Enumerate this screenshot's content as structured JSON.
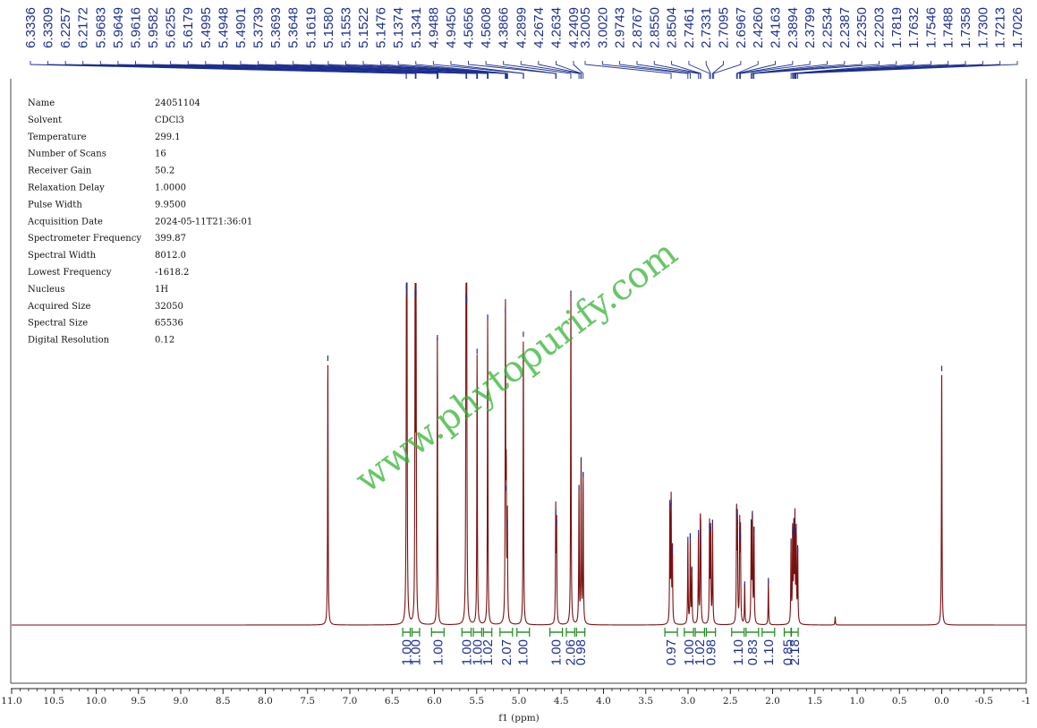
{
  "chart_data": {
    "type": "line",
    "xlabel": "f1 (ppm)",
    "xlim": [
      11.0,
      -1.0
    ],
    "ylim": [
      0,
      1.0
    ],
    "x_reversed": true,
    "x_ticks": [
      "11.0",
      "10.5",
      "10.0",
      "9.5",
      "9.0",
      "8.5",
      "8.0",
      "7.5",
      "7.0",
      "6.5",
      "6.0",
      "5.5",
      "5.0",
      "4.5",
      "4.0",
      "3.5",
      "3.0",
      "2.5",
      "2.0",
      "1.5",
      "1.0",
      "0.5",
      "0.0",
      "-0.5",
      "-1"
    ],
    "tick_values": [
      11.0,
      10.5,
      10.0,
      9.5,
      9.0,
      8.5,
      8.0,
      7.5,
      7.0,
      6.5,
      6.0,
      5.5,
      5.0,
      4.5,
      4.0,
      3.5,
      3.0,
      2.5,
      2.0,
      1.5,
      1.0,
      0.5,
      0.0,
      -0.5,
      -1.0
    ],
    "peak_labels": [
      "6.3336",
      "6.3309",
      "6.2257",
      "6.2172",
      "5.9683",
      "5.9649",
      "5.9616",
      "5.9582",
      "5.6255",
      "5.6179",
      "5.4995",
      "5.4948",
      "5.4901",
      "5.3739",
      "5.3693",
      "5.3648",
      "5.1619",
      "5.1580",
      "5.1553",
      "5.1522",
      "5.1476",
      "5.1374",
      "5.1341",
      "4.9488",
      "4.9450",
      "4.5656",
      "4.5608",
      "4.3866",
      "4.2899",
      "4.2674",
      "4.2634",
      "4.2409",
      "3.2005",
      "3.0020",
      "2.9743",
      "2.8767",
      "2.8550",
      "2.8504",
      "2.7461",
      "2.7331",
      "2.7095",
      "2.6967",
      "2.4260",
      "2.4163",
      "2.3894",
      "2.3799",
      "2.2534",
      "2.2387",
      "2.2350",
      "2.2203",
      "1.7819",
      "1.7632",
      "1.7546",
      "1.7488",
      "1.7358",
      "1.7300",
      "1.7213",
      "1.7026"
    ],
    "series": [
      {
        "peaks": [
          {
            "x": 7.26,
            "h": 0.78
          },
          {
            "x": 6.33,
            "h": 0.99
          },
          {
            "x": 6.325,
            "h": 0.97
          },
          {
            "x": 6.228,
            "h": 0.97
          },
          {
            "x": 6.217,
            "h": 0.97
          },
          {
            "x": 5.965,
            "h": 0.84
          },
          {
            "x": 5.626,
            "h": 0.96
          },
          {
            "x": 5.618,
            "h": 0.95
          },
          {
            "x": 5.495,
            "h": 0.8
          },
          {
            "x": 5.37,
            "h": 0.9
          },
          {
            "x": 5.16,
            "h": 0.92
          },
          {
            "x": 5.15,
            "h": 0.4
          },
          {
            "x": 5.137,
            "h": 0.3
          },
          {
            "x": 4.948,
            "h": 0.85
          },
          {
            "x": 4.565,
            "h": 0.33
          },
          {
            "x": 4.555,
            "h": 0.3
          },
          {
            "x": 4.386,
            "h": 0.97
          },
          {
            "x": 4.29,
            "h": 0.4
          },
          {
            "x": 4.265,
            "h": 0.48
          },
          {
            "x": 4.241,
            "h": 0.44
          },
          {
            "x": 3.215,
            "h": 0.35
          },
          {
            "x": 3.2,
            "h": 0.36
          },
          {
            "x": 3.185,
            "h": 0.22
          },
          {
            "x": 3.002,
            "h": 0.25
          },
          {
            "x": 2.974,
            "h": 0.26
          },
          {
            "x": 2.955,
            "h": 0.16
          },
          {
            "x": 2.877,
            "h": 0.27
          },
          {
            "x": 2.855,
            "h": 0.25
          },
          {
            "x": 2.85,
            "h": 0.21
          },
          {
            "x": 2.746,
            "h": 0.29
          },
          {
            "x": 2.733,
            "h": 0.28
          },
          {
            "x": 2.71,
            "h": 0.3
          },
          {
            "x": 2.426,
            "h": 0.33
          },
          {
            "x": 2.416,
            "h": 0.3
          },
          {
            "x": 2.389,
            "h": 0.28
          },
          {
            "x": 2.38,
            "h": 0.26
          },
          {
            "x": 2.33,
            "h": 0.12
          },
          {
            "x": 2.253,
            "h": 0.3
          },
          {
            "x": 2.239,
            "h": 0.32
          },
          {
            "x": 2.22,
            "h": 0.28
          },
          {
            "x": 2.05,
            "h": 0.13
          },
          {
            "x": 1.782,
            "h": 0.24
          },
          {
            "x": 1.763,
            "h": 0.27
          },
          {
            "x": 1.749,
            "h": 0.28
          },
          {
            "x": 1.736,
            "h": 0.3
          },
          {
            "x": 1.721,
            "h": 0.27
          },
          {
            "x": 1.703,
            "h": 0.22
          },
          {
            "x": 1.26,
            "h": 0.025
          },
          {
            "x": 0.0,
            "h": 0.75
          }
        ]
      }
    ],
    "integrals": [
      {
        "x": 6.33,
        "label": "1.00"
      },
      {
        "x": 6.22,
        "label": "1.00"
      },
      {
        "x": 5.96,
        "label": "1.00"
      },
      {
        "x": 5.62,
        "label": "1.00"
      },
      {
        "x": 5.49,
        "label": "1.00"
      },
      {
        "x": 5.37,
        "label": "1.02"
      },
      {
        "x": 5.15,
        "label": "2.07"
      },
      {
        "x": 4.95,
        "label": "1.00"
      },
      {
        "x": 4.56,
        "label": "1.00"
      },
      {
        "x": 4.39,
        "label": "2.06"
      },
      {
        "x": 4.27,
        "label": "0.98"
      },
      {
        "x": 3.2,
        "label": "0.97"
      },
      {
        "x": 2.99,
        "label": "1.00"
      },
      {
        "x": 2.86,
        "label": "1.02"
      },
      {
        "x": 2.73,
        "label": "0.98"
      },
      {
        "x": 2.41,
        "label": "1.10"
      },
      {
        "x": 2.24,
        "label": "0.83"
      },
      {
        "x": 2.05,
        "label": "1.10"
      },
      {
        "x": 1.82,
        "label": "0.85"
      },
      {
        "x": 1.74,
        "label": "2.18"
      }
    ]
  },
  "params": [
    {
      "name": "Name",
      "value": "24051104"
    },
    {
      "name": "Solvent",
      "value": "CDCl3"
    },
    {
      "name": "Temperature",
      "value": "299.1"
    },
    {
      "name": "Number of Scans",
      "value": "16"
    },
    {
      "name": "Receiver Gain",
      "value": "50.2"
    },
    {
      "name": "Relaxation Delay",
      "value": "1.0000"
    },
    {
      "name": "Pulse Width",
      "value": "9.9500"
    },
    {
      "name": "Acquisition Date",
      "value": "2024-05-11T21:36:01"
    },
    {
      "name": "Spectrometer Frequency",
      "value": "399.87"
    },
    {
      "name": "Spectral Width",
      "value": "8012.0"
    },
    {
      "name": "Lowest Frequency",
      "value": "-1618.2"
    },
    {
      "name": "Nucleus",
      "value": "1H"
    },
    {
      "name": "Acquired Size",
      "value": "32050"
    },
    {
      "name": "Spectral Size",
      "value": "65536"
    },
    {
      "name": "Digital Resolution",
      "value": "0.12"
    }
  ],
  "watermark": "www.phytopurify.com",
  "colors": {
    "spectrum": "#7a1010",
    "labels": "#1c2f8f",
    "integral": "#1e8a1e",
    "watermark": "#35b535"
  }
}
